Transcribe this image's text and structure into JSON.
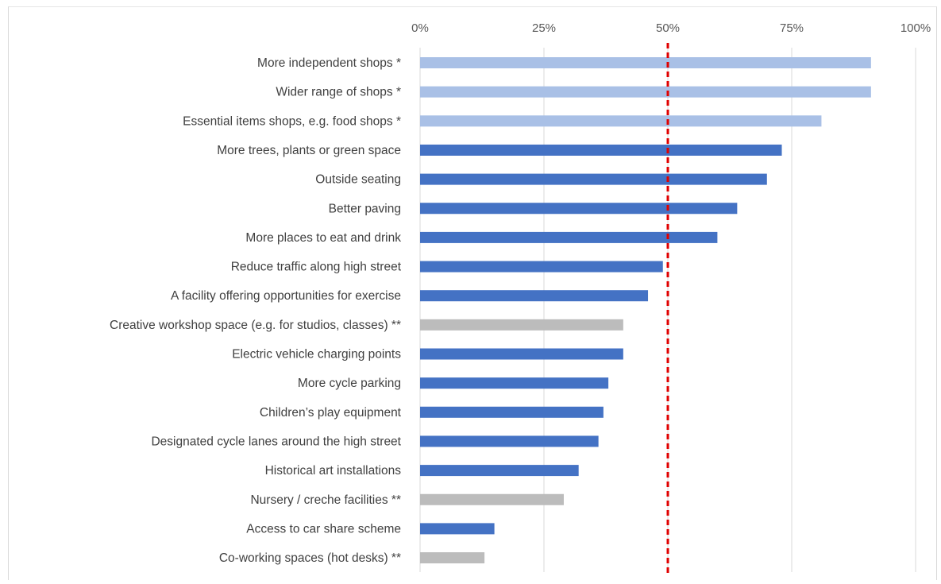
{
  "chart_data": {
    "type": "bar",
    "orientation": "horizontal",
    "title": "",
    "xlabel": "",
    "ylabel": "",
    "xlim": [
      0,
      100
    ],
    "x_ticks": [
      0,
      25,
      50,
      75,
      100
    ],
    "x_tick_labels": [
      "0%",
      "25%",
      "50%",
      "75%",
      "100%"
    ],
    "x_axis_position": "top",
    "grid": true,
    "legend": "none",
    "reference_line": {
      "value": 50,
      "style": "dashed",
      "color": "#e00000"
    },
    "category_groups": {
      "single": "#4472c4",
      "starred": "#a9c0e6",
      "double-starred": "#bcbcbc"
    },
    "categories": [
      "More independent shops *",
      "Wider range of shops *",
      "Essential items shops, e.g. food shops *",
      "More trees, plants or green space",
      "Outside seating",
      "Better paving",
      "More places to eat and drink",
      "Reduce traffic along high street",
      "A facility offering opportunities for exercise",
      "Creative workshop space (e.g. for studios, classes) **",
      "Electric vehicle charging points",
      "More cycle parking",
      "Children’s play equipment",
      "Designated cycle lanes around the high street",
      "Historical art installations",
      "Nursery / creche facilities **",
      "Access to car share scheme",
      "Co-working spaces (hot desks) **"
    ],
    "values": [
      91,
      91,
      81,
      73,
      70,
      64,
      60,
      49,
      46,
      41,
      41,
      38,
      37,
      36,
      32,
      29,
      15,
      13
    ],
    "bar_groups": [
      "starred",
      "starred",
      "starred",
      "single",
      "single",
      "single",
      "single",
      "single",
      "single",
      "double-starred",
      "single",
      "single",
      "single",
      "single",
      "single",
      "double-starred",
      "single",
      "double-starred"
    ]
  }
}
